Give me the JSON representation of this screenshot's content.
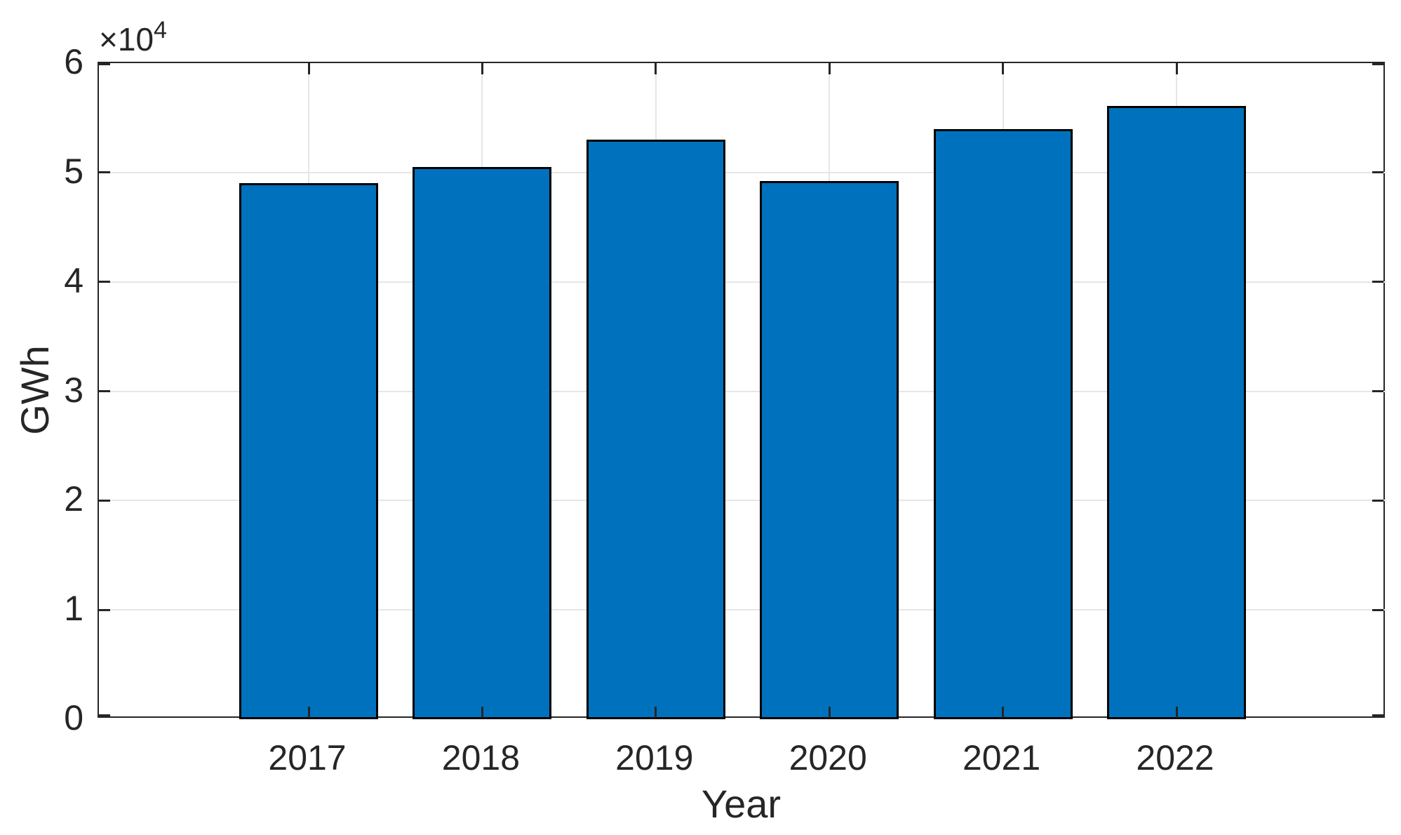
{
  "chart_data": {
    "type": "bar",
    "title": "",
    "categories": [
      "2017",
      "2018",
      "2019",
      "2020",
      "2021",
      "2022"
    ],
    "values": [
      49000,
      50500,
      53000,
      49200,
      54000,
      56100
    ],
    "series_unit": "GWh",
    "xlabel": "Year",
    "ylabel": "GWh",
    "ylim": [
      0,
      60000
    ],
    "ytick_values": [
      0,
      10000,
      20000,
      30000,
      40000,
      50000,
      60000
    ],
    "ytick_labels": [
      "0",
      "1",
      "2",
      "3",
      "4",
      "5",
      "6"
    ],
    "y_axis_multiplier": {
      "base": "×10",
      "exponent": "4"
    },
    "grid": true,
    "legend": "none",
    "bar_color": "#0072BD",
    "bar_edge_color": "#000000",
    "axis_color": "#262626",
    "grid_color": "#e6e6e6",
    "text_color": "#262626",
    "background_color": "#ffffff"
  }
}
